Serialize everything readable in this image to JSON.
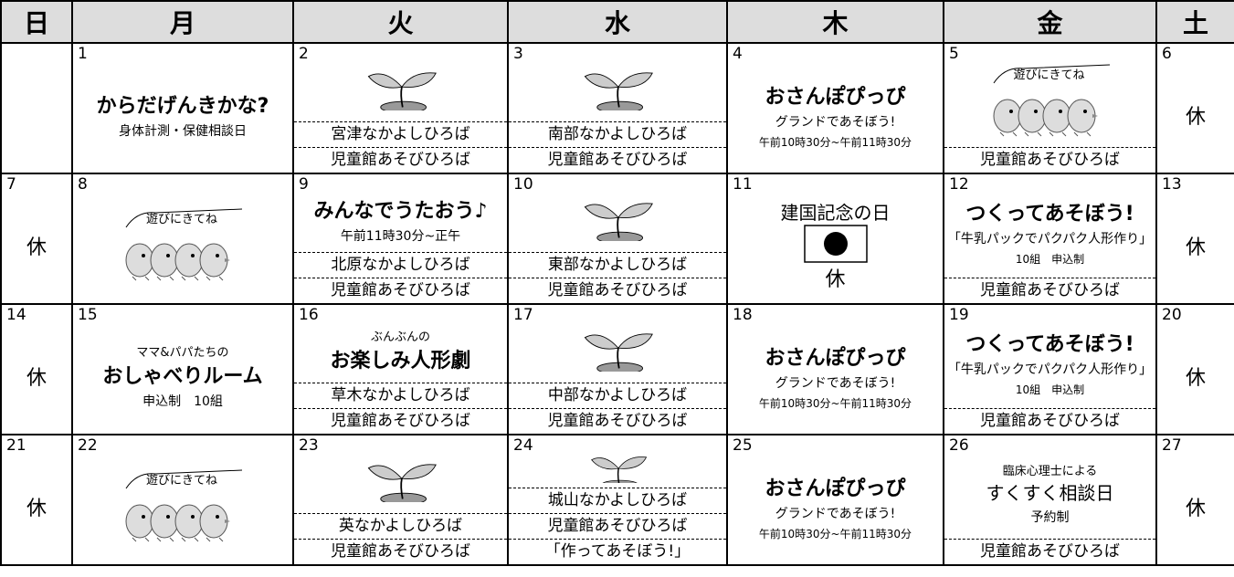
{
  "header": {
    "days": [
      "日",
      "月",
      "火",
      "水",
      "木",
      "金",
      "土"
    ]
  },
  "weeks": [
    {
      "cells": [
        {},
        {
          "date": "1",
          "heading": "からだげんきかな?",
          "sub": "身体計測・保健相談日"
        },
        {
          "date": "2",
          "slots": [
            "宮津なかよしひろば",
            "児童館あそびひろば"
          ]
        },
        {
          "date": "3",
          "slots": [
            "南部なかよしひろば",
            "児童館あそびひろば"
          ]
        },
        {
          "date": "4",
          "heading": "おさんぽぴっぴ",
          "sub": "グランドであそぼう!",
          "time": "午前10時30分~午前11時30分"
        },
        {
          "date": "5",
          "bubble": "遊びにきてね",
          "slots": [
            "児童館あそびひろば"
          ]
        },
        {
          "date": "6",
          "rest": "休"
        }
      ]
    },
    {
      "cells": [
        {
          "date": "7",
          "rest": "休"
        },
        {
          "date": "8",
          "bubble": "遊びにきてね"
        },
        {
          "date": "9",
          "heading": "みんなでうたおう♪",
          "sub": "午前11時30分~正午",
          "slots": [
            "北原なかよしひろば",
            "児童館あそびひろば"
          ]
        },
        {
          "date": "10",
          "slots": [
            "東部なかよしひろば",
            "児童館あそびひろば"
          ]
        },
        {
          "date": "11",
          "holiday": "建国記念の日",
          "rest": "休"
        },
        {
          "date": "12",
          "heading": "つくってあそぼう!",
          "sub": "「牛乳パックでパクパク人形作り」",
          "time": "10組　申込制",
          "slots": [
            "児童館あそびひろば"
          ]
        },
        {
          "date": "13",
          "rest": "休"
        }
      ]
    },
    {
      "cells": [
        {
          "date": "14",
          "rest": "休"
        },
        {
          "date": "15",
          "pre": "ママ&パパたちの",
          "heading": "おしゃべりルーム",
          "sub": "申込制　10組"
        },
        {
          "date": "16",
          "pre": "ぶんぶんの",
          "heading": "お楽しみ人形劇",
          "slots": [
            "草木なかよしひろば",
            "児童館あそびひろば"
          ]
        },
        {
          "date": "17",
          "slots": [
            "中部なかよしひろば",
            "児童館あそびひろば"
          ]
        },
        {
          "date": "18",
          "heading": "おさんぽぴっぴ",
          "sub": "グランドであそぼう!",
          "time": "午前10時30分~午前11時30分"
        },
        {
          "date": "19",
          "heading": "つくってあそぼう!",
          "sub": "「牛乳パックでパクパク人形作り」",
          "time": "10組　申込制",
          "slots": [
            "児童館あそびひろば"
          ]
        },
        {
          "date": "20",
          "rest": "休"
        }
      ]
    },
    {
      "cells": [
        {
          "date": "21",
          "rest": "休"
        },
        {
          "date": "22",
          "bubble": "遊びにきてね"
        },
        {
          "date": "23",
          "slots": [
            "英なかよしひろば",
            "児童館あそびひろば"
          ]
        },
        {
          "date": "24",
          "slots": [
            "城山なかよしひろば",
            "児童館あそびひろば",
            "「作ってあそぼう!」"
          ]
        },
        {
          "date": "25",
          "heading": "おさんぽぴっぴ",
          "sub": "グランドであそぼう!",
          "time": "午前10時30分~午前11時30分"
        },
        {
          "date": "26",
          "pre": "臨床心理士による",
          "holiday": "すくすく相談日",
          "sub": "予約制",
          "slots": [
            "児童館あそびひろば"
          ]
        },
        {
          "date": "27",
          "rest": "休"
        }
      ]
    }
  ]
}
